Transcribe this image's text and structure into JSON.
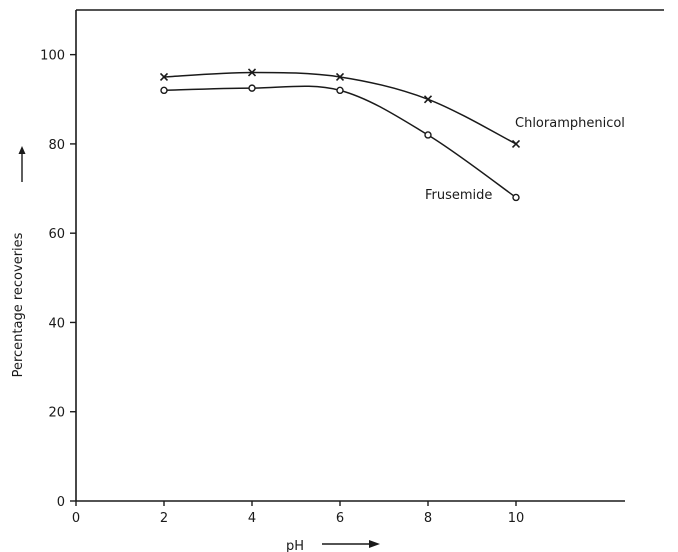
{
  "chart_data": {
    "type": "line",
    "xlabel": "pH",
    "ylabel": "Percentage recoveries",
    "xlim": [
      0,
      12.5
    ],
    "ylim": [
      0,
      110
    ],
    "x_ticks": [
      "0",
      "2",
      "4",
      "6",
      "8",
      "10"
    ],
    "y_ticks": [
      "0",
      "20",
      "40",
      "60",
      "80",
      "100"
    ],
    "grid": false,
    "legend": "none",
    "series": [
      {
        "name": "Chloramphenicol",
        "marker": "x",
        "x": [
          2,
          4,
          6,
          8,
          10
        ],
        "y": [
          95,
          96,
          95,
          90,
          80
        ]
      },
      {
        "name": "Frusemide",
        "marker": "o",
        "x": [
          2,
          4,
          6,
          8,
          10
        ],
        "y": [
          92,
          92.5,
          92,
          82,
          68
        ]
      }
    ],
    "line_color": "#1a1a1a"
  }
}
